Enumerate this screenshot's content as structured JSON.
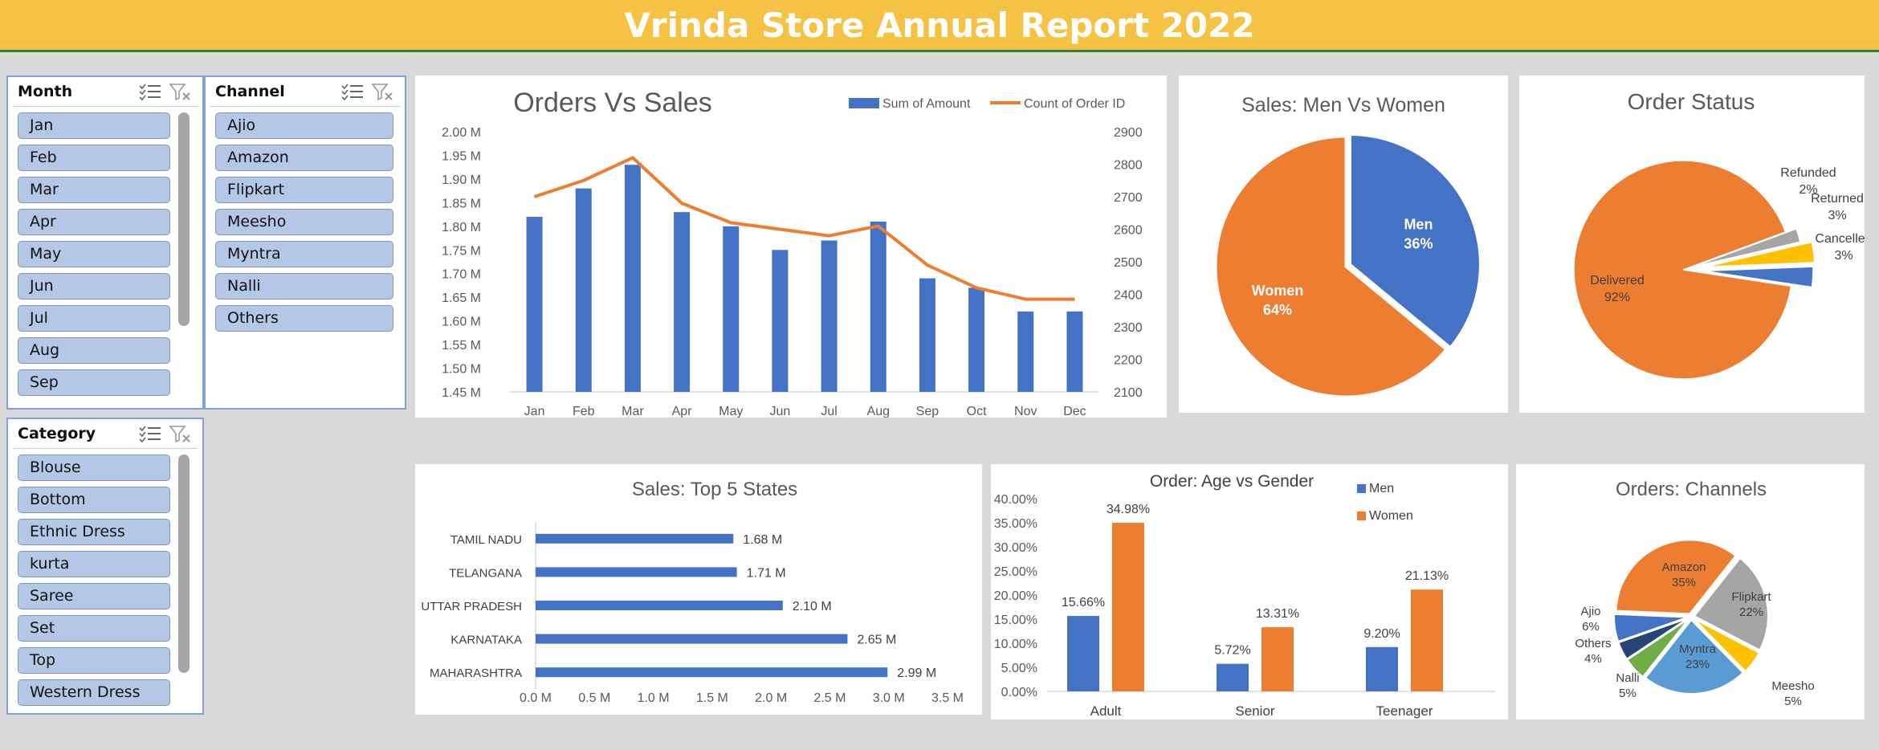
{
  "title": "Vrinda Store Annual Report 2022",
  "slicers": {
    "month": {
      "label": "Month",
      "items": [
        "Jan",
        "Feb",
        "Mar",
        "Apr",
        "May",
        "Jun",
        "Jul",
        "Aug",
        "Sep"
      ]
    },
    "channel": {
      "label": "Channel",
      "items": [
        "Ajio",
        "Amazon",
        "Flipkart",
        "Meesho",
        "Myntra",
        "Nalli",
        "Others"
      ]
    },
    "category": {
      "label": "Category",
      "items": [
        "Blouse",
        "Bottom",
        "Ethnic Dress",
        "kurta",
        "Saree",
        "Set",
        "Top",
        "Western Dress"
      ]
    }
  },
  "colors": {
    "blue": "#4472c4",
    "orange": "#ed7d31",
    "gray": "#a5a5a5",
    "yellow": "#ffc000",
    "lightblue": "#5b9bd5",
    "green": "#70ad47",
    "navy": "#264478"
  },
  "chart_data": [
    {
      "id": "orders_vs_sales",
      "type": "bar",
      "title": "Orders Vs Sales",
      "categories": [
        "Jan",
        "Feb",
        "Mar",
        "Apr",
        "May",
        "Jun",
        "Jul",
        "Aug",
        "Sep",
        "Oct",
        "Nov",
        "Dec"
      ],
      "series": [
        {
          "name": "Sum of Amount",
          "type": "bar",
          "axis": "left",
          "values": [
            1.82,
            1.88,
            1.93,
            1.83,
            1.8,
            1.75,
            1.77,
            1.81,
            1.69,
            1.67,
            1.62,
            1.62
          ]
        },
        {
          "name": "Count of Order ID",
          "type": "line",
          "axis": "right",
          "values": [
            2700,
            2750,
            2820,
            2680,
            2620,
            2600,
            2580,
            2610,
            2490,
            2420,
            2385,
            2385
          ]
        }
      ],
      "ylim_left": [
        1.45,
        2.0
      ],
      "yticks_left": [
        "2.00 M",
        "1.95 M",
        "1.90 M",
        "1.85 M",
        "1.80 M",
        "1.75 M",
        "1.70 M",
        "1.65 M",
        "1.60 M",
        "1.55 M",
        "1.50 M",
        "1.45 M"
      ],
      "ylim_right": [
        2100,
        2900
      ],
      "yticks_right": [
        "2900",
        "2800",
        "2700",
        "2600",
        "2500",
        "2400",
        "2300",
        "2200",
        "2100"
      ],
      "legend": "top-right"
    },
    {
      "id": "sales_gender",
      "type": "pie",
      "title": "Sales: Men Vs Women",
      "labels": [
        "Men",
        "Women"
      ],
      "values": [
        36,
        64
      ],
      "pct_labels": [
        "36%",
        "64%"
      ]
    },
    {
      "id": "order_status",
      "type": "pie",
      "title": "Order Status",
      "labels": [
        "Delivered",
        "Refunded",
        "Returned",
        "Cancelled"
      ],
      "values": [
        92,
        2,
        3,
        3
      ],
      "pct_labels": [
        "92%",
        "2%",
        "3%",
        "3%"
      ]
    },
    {
      "id": "top_states",
      "type": "bar",
      "orientation": "horizontal",
      "title": "Sales: Top 5 States",
      "categories": [
        "TAMIL NADU",
        "TELANGANA",
        "UTTAR PRADESH",
        "KARNATAKA",
        "MAHARASHTRA"
      ],
      "values": [
        1.68,
        1.71,
        2.1,
        2.65,
        2.99
      ],
      "value_labels": [
        "1.68 M",
        "1.71 M",
        "2.10 M",
        "2.65 M",
        "2.99 M"
      ],
      "xlim": [
        0,
        3.5
      ],
      "xticks": [
        "0.0 M",
        "0.5 M",
        "1.0 M",
        "1.5 M",
        "2.0 M",
        "2.5 M",
        "3.0 M",
        "3.5 M"
      ]
    },
    {
      "id": "age_gender",
      "type": "bar",
      "title": "Order: Age vs Gender",
      "categories": [
        "Adult",
        "Senior",
        "Teenager"
      ],
      "series": [
        {
          "name": "Men",
          "values": [
            15.66,
            5.72,
            9.2
          ],
          "value_labels": [
            "15.66%",
            "5.72%",
            "9.20%"
          ]
        },
        {
          "name": "Women",
          "values": [
            34.98,
            13.31,
            21.13
          ],
          "value_labels": [
            "34.98%",
            "13.31%",
            "21.13%"
          ]
        }
      ],
      "ylim": [
        0,
        40
      ],
      "yticks": [
        "40.00%",
        "35.00%",
        "30.00%",
        "25.00%",
        "20.00%",
        "15.00%",
        "10.00%",
        "5.00%",
        "0.00%"
      ],
      "legend": "top-right"
    },
    {
      "id": "channels",
      "type": "pie",
      "title": "Orders: Channels",
      "labels": [
        "Amazon",
        "Flipkart",
        "Meesho",
        "Myntra",
        "Nalli",
        "Others",
        "Ajio"
      ],
      "values": [
        35,
        22,
        5,
        23,
        5,
        4,
        6
      ],
      "pct_labels": [
        "35%",
        "22%",
        "5%",
        "23%",
        "5%",
        "4%",
        "6%"
      ]
    }
  ]
}
